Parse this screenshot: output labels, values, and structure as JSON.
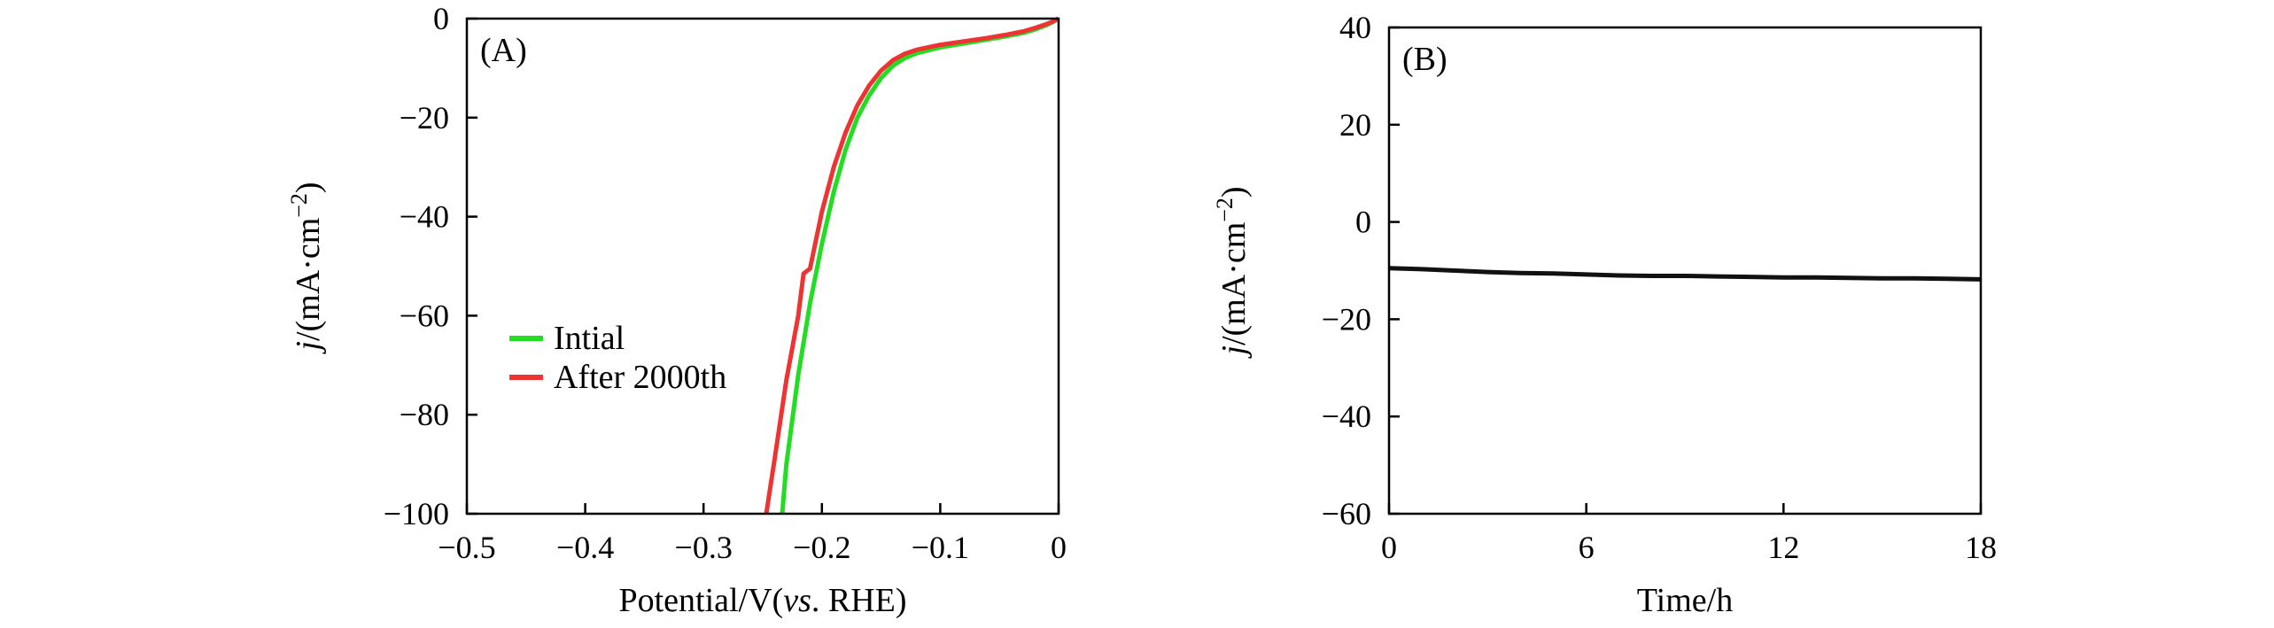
{
  "chart_data": [
    {
      "panel_label": "(A)",
      "type": "line",
      "xlabel": {
        "prefix": "Potential/V(",
        "italic": "vs",
        "suffix": ". RHE)"
      },
      "ylabel": {
        "italic": "j",
        "rest": "/(mA·cm",
        "sup": "−2",
        "close": ")"
      },
      "xlim": [
        -0.5,
        0
      ],
      "ylim": [
        -100,
        0
      ],
      "x_ticks": [
        -0.5,
        -0.4,
        -0.3,
        -0.2,
        -0.1,
        0
      ],
      "x_tick_labels": [
        "−0.5",
        "−0.4",
        "−0.3",
        "−0.2",
        "−0.1",
        "0"
      ],
      "y_ticks": [
        0,
        -20,
        -40,
        -60,
        -80,
        -100
      ],
      "y_tick_labels": [
        "0",
        "−20",
        "−40",
        "−60",
        "−80",
        "−100"
      ],
      "legend_position": "center-left",
      "series": [
        {
          "name": "Intial",
          "color": "#22dd22",
          "points": [
            [
              0,
              0
            ],
            [
              -0.005,
              -0.7
            ],
            [
              -0.01,
              -1.3
            ],
            [
              -0.02,
              -2.2
            ],
            [
              -0.03,
              -2.9
            ],
            [
              -0.045,
              -3.6
            ],
            [
              -0.06,
              -4.2
            ],
            [
              -0.08,
              -5.0
            ],
            [
              -0.1,
              -5.8
            ],
            [
              -0.12,
              -7.0
            ],
            [
              -0.13,
              -8.0
            ],
            [
              -0.14,
              -9.5
            ],
            [
              -0.15,
              -12.0
            ],
            [
              -0.16,
              -15.5
            ],
            [
              -0.17,
              -20.0
            ],
            [
              -0.18,
              -26.5
            ],
            [
              -0.19,
              -35.0
            ],
            [
              -0.2,
              -45.5
            ],
            [
              -0.21,
              -57.5
            ],
            [
              -0.22,
              -72.0
            ],
            [
              -0.23,
              -90.0
            ],
            [
              -0.2335,
              -100
            ]
          ]
        },
        {
          "name": "After 2000th",
          "color": "#ee3333",
          "points": [
            [
              0,
              0
            ],
            [
              -0.005,
              -0.6
            ],
            [
              -0.01,
              -1.1
            ],
            [
              -0.02,
              -1.9
            ],
            [
              -0.03,
              -2.6
            ],
            [
              -0.045,
              -3.3
            ],
            [
              -0.06,
              -3.9
            ],
            [
              -0.08,
              -4.6
            ],
            [
              -0.1,
              -5.3
            ],
            [
              -0.12,
              -6.3
            ],
            [
              -0.13,
              -7.1
            ],
            [
              -0.14,
              -8.4
            ],
            [
              -0.15,
              -10.5
            ],
            [
              -0.16,
              -13.5
            ],
            [
              -0.17,
              -17.5
            ],
            [
              -0.18,
              -23.0
            ],
            [
              -0.19,
              -30.0
            ],
            [
              -0.2,
              -39.0
            ],
            [
              -0.21,
              -50.5
            ],
            [
              -0.2155,
              -51.5
            ],
            [
              -0.22,
              -60.0
            ],
            [
              -0.23,
              -73.0
            ],
            [
              -0.24,
              -89.0
            ],
            [
              -0.247,
              -100
            ]
          ]
        }
      ]
    },
    {
      "panel_label": "(B)",
      "type": "line",
      "xlabel": {
        "prefix": "Time/h",
        "italic": "",
        "suffix": ""
      },
      "ylabel": {
        "italic": "j",
        "rest": "/(mA·cm",
        "sup": "−2",
        "close": ")"
      },
      "xlim": [
        0,
        18
      ],
      "ylim": [
        -60,
        40
      ],
      "x_ticks": [
        0,
        6,
        12,
        18
      ],
      "x_tick_labels": [
        "0",
        "6",
        "12",
        "18"
      ],
      "y_ticks": [
        40,
        20,
        0,
        -20,
        -40,
        -60
      ],
      "y_tick_labels": [
        "40",
        "20",
        "0",
        "−20",
        "−40",
        "−60"
      ],
      "series": [
        {
          "color": "#111111",
          "points": [
            [
              0,
              -9.5
            ],
            [
              1,
              -9.7
            ],
            [
              2,
              -10.0
            ],
            [
              3,
              -10.3
            ],
            [
              4,
              -10.5
            ],
            [
              5,
              -10.6
            ],
            [
              6,
              -10.8
            ],
            [
              7,
              -11.0
            ],
            [
              8,
              -11.1
            ],
            [
              9,
              -11.1
            ],
            [
              10,
              -11.2
            ],
            [
              11,
              -11.3
            ],
            [
              12,
              -11.4
            ],
            [
              13,
              -11.4
            ],
            [
              14,
              -11.5
            ],
            [
              15,
              -11.6
            ],
            [
              16,
              -11.6
            ],
            [
              17,
              -11.7
            ],
            [
              18,
              -11.8
            ]
          ]
        }
      ]
    }
  ]
}
